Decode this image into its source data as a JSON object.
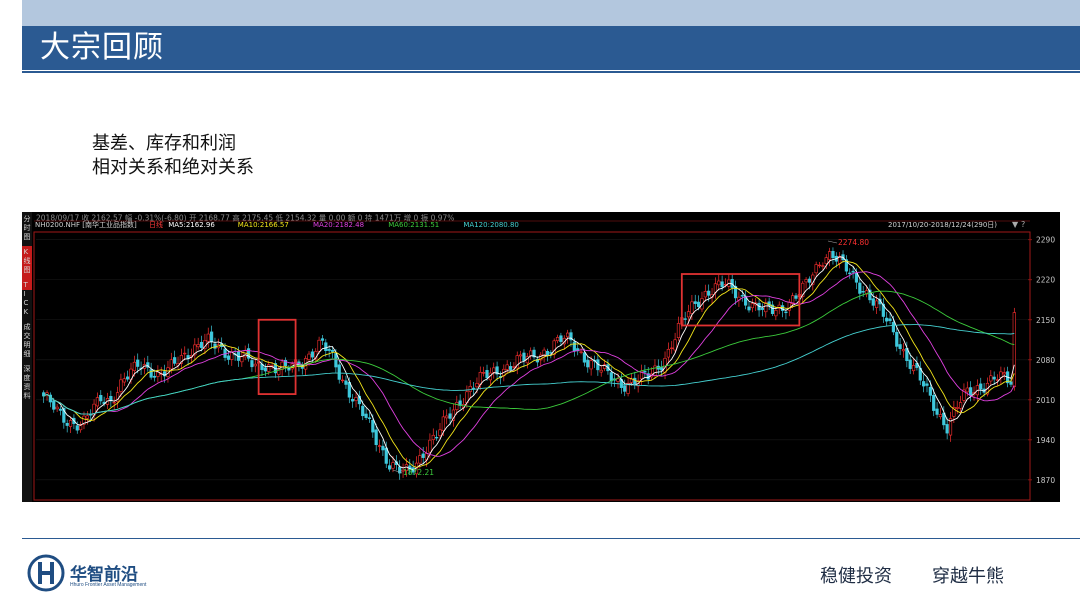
{
  "header": {
    "title": "大宗回顾"
  },
  "subtitle": {
    "line1": "基差、库存和利润",
    "line2": "相对关系和绝对关系"
  },
  "chart_panel": {
    "info_row": "2018/09/17  收 2162.57  幅 -0.31%(-6.80)  开 2168.77  高 2175.45  低 2154.32  量 0.00  额 0  持 1471万  增 0  振 0.97%",
    "symbol": "NH0200.NHF [南华工业品指数]",
    "range": "2017/10/20-2018/12/24(290日)",
    "side_tabs": [
      "分时图",
      "K线图",
      "TICK",
      "成交明细",
      "深度资料"
    ],
    "ma_labels": [
      {
        "text": "日线",
        "color": "#ff3a3a"
      },
      {
        "text": "MA5:2162.96",
        "color": "#ffffff"
      },
      {
        "text": "MA10:2166.57",
        "color": "#f2e51a"
      },
      {
        "text": "MA20:2182.48",
        "color": "#e040e0"
      },
      {
        "text": "MA60:2131.51",
        "color": "#3ccc3c"
      },
      {
        "text": "MA120:2080.80",
        "color": "#45d0d0"
      }
    ],
    "high_label": "2274.80",
    "low_label": "1872.21"
  },
  "chart_data": {
    "type": "candlestick",
    "y_ticks": [
      1870,
      1940,
      2010,
      2080,
      2150,
      2220,
      2290
    ],
    "ylim": [
      1840,
      2300
    ],
    "x_range": [
      "2017/10/20",
      "2018/12/24"
    ],
    "trading_days": 290,
    "last_bar": {
      "date": "2018/09/17",
      "close": 2162.57,
      "open": 2168.77,
      "high": 2175.45,
      "low": 2154.32
    },
    "high": 2274.8,
    "low": 1872.21,
    "approx_close_path": [
      2010,
      2000,
      1985,
      1968,
      1960,
      1990,
      2020,
      2008,
      2030,
      2055,
      2080,
      2065,
      2045,
      2060,
      2085,
      2095,
      2100,
      2110,
      2108,
      2095,
      2085,
      2080,
      2070,
      2075,
      2065,
      2060,
      2070,
      2080,
      2095,
      2105,
      2085,
      2050,
      2020,
      1990,
      1960,
      1930,
      1900,
      1885,
      1880,
      1905,
      1935,
      1950,
      1975,
      2000,
      2025,
      2040,
      2050,
      2058,
      2068,
      2075,
      2080,
      2085,
      2095,
      2105,
      2115,
      2110,
      2090,
      2075,
      2060,
      2050,
      2040,
      2040,
      2045,
      2050,
      2070,
      2095,
      2130,
      2160,
      2185,
      2200,
      2205,
      2210,
      2200,
      2185,
      2170,
      2165,
      2170,
      2175,
      2185,
      2200,
      2230,
      2260,
      2265,
      2245,
      2230,
      2210,
      2190,
      2165,
      2140,
      2110,
      2080,
      2050,
      2020,
      1990,
      1965,
      1995,
      2020,
      2030,
      2040,
      2048,
      2045,
      2038
    ],
    "annotations": [
      {
        "type": "box",
        "x_range": [
          "2018/01",
          "2018/02"
        ],
        "y_range": [
          2020,
          2150
        ]
      },
      {
        "type": "box",
        "x_range": [
          "2018/06",
          "2018/08"
        ],
        "y_range": [
          2140,
          2230
        ]
      }
    ]
  },
  "footer": {
    "logo_cn": "华智前沿",
    "logo_en": "Hhuro Frontier Asset Management",
    "slogan_left": "稳健投资",
    "slogan_right": "穿越牛熊"
  },
  "colors": {
    "accent": "#2b5a92",
    "header_band": "#b3c7de",
    "up": "#ff3030",
    "down": "#3ec8dc"
  }
}
